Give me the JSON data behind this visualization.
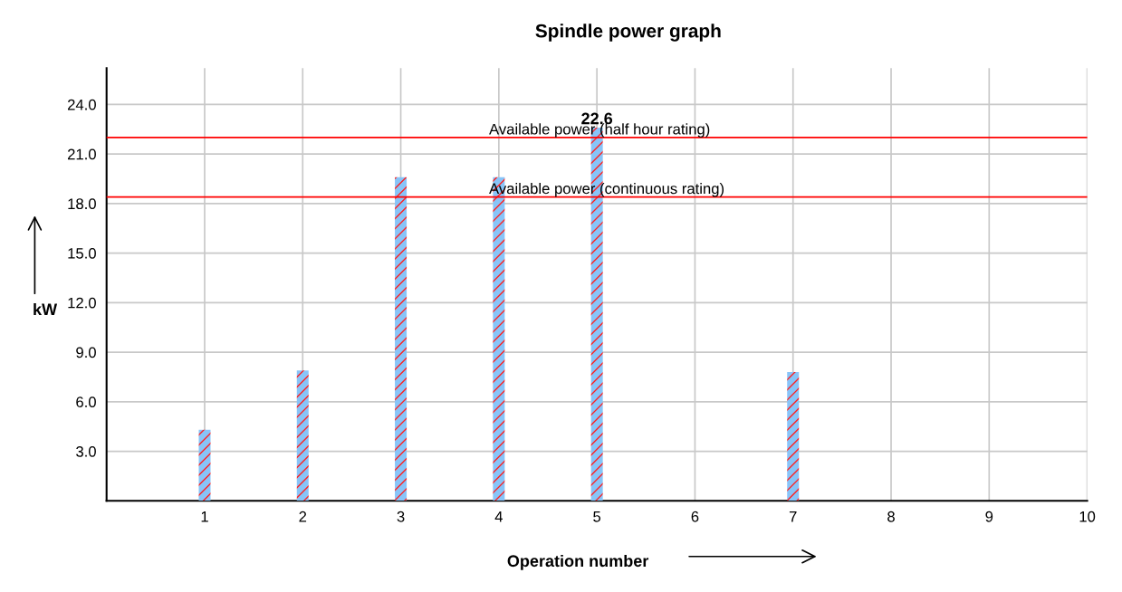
{
  "chart_data": {
    "type": "bar",
    "title": "Spindle power graph",
    "xlabel": "Operation number",
    "ylabel": "kW",
    "x": [
      1,
      2,
      3,
      4,
      5,
      7
    ],
    "series": [
      {
        "color": "#88c4f8",
        "values": [
          4.3,
          7.9,
          19.6,
          19.6,
          22.6,
          7.8
        ],
        "value_labels": [
          null,
          null,
          null,
          null,
          "22.6",
          null
        ]
      }
    ],
    "xlim": [
      0,
      10
    ],
    "xticks": [
      1,
      2,
      3,
      4,
      5,
      6,
      7,
      8,
      9,
      10
    ],
    "ylim": [
      0,
      26.2
    ],
    "yticks": [
      {
        "value": 3,
        "label": "3.0"
      },
      {
        "value": 6,
        "label": "6.0"
      },
      {
        "value": 9,
        "label": "9.0"
      },
      {
        "value": 12,
        "label": "12.0"
      },
      {
        "value": 15,
        "label": "15.0"
      },
      {
        "value": 18,
        "label": "18.0"
      },
      {
        "value": 21,
        "label": "21.0"
      },
      {
        "value": 24,
        "label": "24.0"
      }
    ],
    "ref_lines": [
      {
        "axis": "y",
        "value": 22.0,
        "label": "Available power (half hour rating)",
        "color": "#ff0000"
      },
      {
        "axis": "y",
        "value": 18.4,
        "label": "Available power (continuous rating)",
        "color": "#ff0000"
      }
    ],
    "grid": true
  }
}
